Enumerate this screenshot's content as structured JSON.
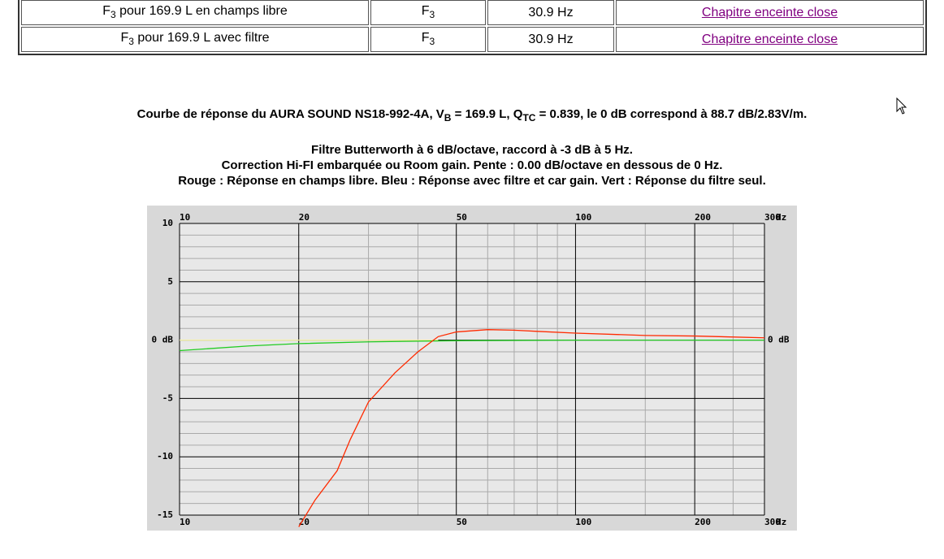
{
  "table": {
    "rows": [
      {
        "label": {
          "symbol": "F",
          "sub": "3",
          "text": "pour 169.9 L en champs libre"
        },
        "param": {
          "symbol": "F",
          "sub": "3"
        },
        "value": "30.9 Hz",
        "link": "Chapitre enceinte close"
      },
      {
        "label": {
          "symbol": "F",
          "sub": "3",
          "text": "pour 169.9 L avec filtre"
        },
        "param": {
          "symbol": "F",
          "sub": "3"
        },
        "value": "30.9 Hz",
        "link": "Chapitre enceinte close"
      }
    ]
  },
  "caption": {
    "title_parts": [
      "Courbe de réponse du AURA SOUND NS18-992-4A, V",
      "B",
      " = 169.9 L, Q",
      "TC",
      " = 0.839, le 0 dB correspond à 88.7 dB/2.83V/m."
    ],
    "lines": [
      "Filtre Butterworth à 6 dB/octave, raccord à -3 dB à 5 Hz.",
      "Correction Hi-FI embarquée ou Room gain. Pente : 0.00 dB/octave en dessous de 0 Hz.",
      "Rouge : Réponse en champs libre. Bleu : Réponse avec filtre et car gain. Vert : Réponse du filtre seul."
    ]
  },
  "chart_data": {
    "type": "line",
    "x_scale": "log",
    "xlim": [
      10,
      300
    ],
    "xticks": [
      10,
      20,
      50,
      100,
      200,
      300
    ],
    "x_minor_ticks": [
      30,
      40,
      60,
      70,
      80,
      90,
      150,
      250
    ],
    "x_unit": "Hz",
    "ylim": [
      -15,
      10
    ],
    "yticks": [
      10,
      5,
      {
        "value": 0,
        "label": "0 dB"
      },
      -5,
      -10,
      -15
    ],
    "y_minor_ticks": [
      9,
      8,
      7,
      6,
      4,
      3,
      2,
      1,
      -1,
      -2,
      -3,
      -4,
      -6,
      -7,
      -8,
      -9,
      -11,
      -12,
      -13,
      -14
    ],
    "right_ticks": [
      {
        "value": 0,
        "label": "0 dB"
      }
    ],
    "grid": true,
    "series": [
      {
        "color": "#f4f0a0",
        "x": [
          10,
          45
        ],
        "values": [
          0,
          0
        ]
      },
      {
        "color": "#22cc22",
        "x": [
          10,
          15,
          20,
          30,
          50,
          100,
          300
        ],
        "values": [
          -0.9,
          -0.5,
          -0.3,
          -0.15,
          -0.05,
          0,
          0
        ]
      },
      {
        "color": "#ff2a00",
        "x": [
          20,
          22,
          25,
          27,
          30,
          35,
          40,
          45,
          50,
          60,
          70,
          80,
          100,
          150,
          200,
          300
        ],
        "values": [
          -16,
          -13.7,
          -11.2,
          -8.5,
          -5.3,
          -2.8,
          -1.0,
          0.3,
          0.7,
          0.9,
          0.85,
          0.75,
          0.6,
          0.4,
          0.35,
          0.2
        ]
      }
    ]
  }
}
